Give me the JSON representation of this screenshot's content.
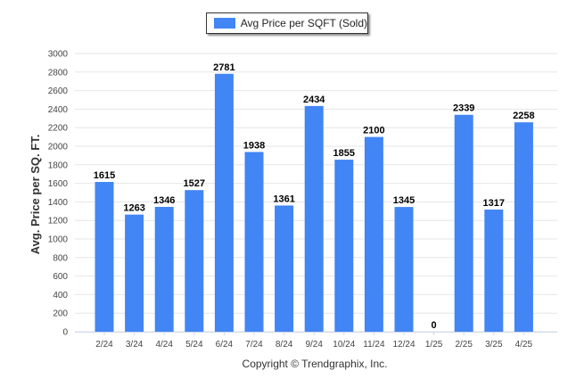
{
  "legend": {
    "label": "Avg Price per SQFT (Sold)"
  },
  "footer": {
    "copyright": "Copyright © Trendgraphix, Inc."
  },
  "chart_data": {
    "type": "bar",
    "categories": [
      "2/24",
      "3/24",
      "4/24",
      "5/24",
      "6/24",
      "7/24",
      "8/24",
      "9/24",
      "10/24",
      "11/24",
      "12/24",
      "1/25",
      "2/25",
      "3/25",
      "4/25"
    ],
    "series": [
      {
        "name": "Avg Price per SQFT (Sold)",
        "values": [
          1615,
          1263,
          1346,
          1527,
          2781,
          1938,
          1361,
          2434,
          1855,
          2100,
          1345,
          0,
          2339,
          1317,
          2258
        ]
      }
    ],
    "ylabel": "Avg. Price per SQ. FT.",
    "xlabel": "",
    "ylim": [
      0,
      3000
    ],
    "yticks": [
      0,
      200,
      400,
      600,
      800,
      1000,
      1200,
      1400,
      1600,
      1800,
      2000,
      2200,
      2400,
      2600,
      2800,
      3000
    ],
    "grid": true,
    "legend_position": "top-center",
    "bar_color": "#4285F4",
    "grid_color": "#e6e6e6"
  }
}
